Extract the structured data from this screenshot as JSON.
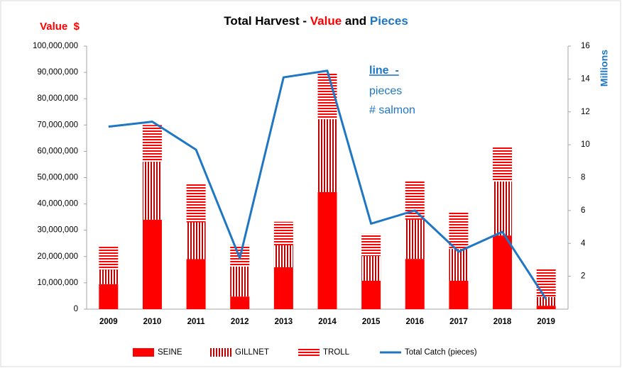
{
  "chart_data": {
    "type": "stacked_bar_line",
    "title_parts": [
      "Total Harvest -",
      "Value",
      "and",
      "Pieces"
    ],
    "y_axis_label": "Value  $",
    "y2_axis_label": "Millions",
    "annotation": [
      "line  -",
      "pieces",
      "# salmon"
    ],
    "categories": [
      "2009",
      "2010",
      "2011",
      "2012",
      "2013",
      "2014",
      "2015",
      "2016",
      "2017",
      "2018",
      "2019"
    ],
    "series": [
      {
        "name": "SEINE",
        "color": "#ff0000",
        "pattern": "solid",
        "values": [
          9.5,
          34,
          19,
          4.8,
          15.9,
          44.5,
          10.8,
          19.1,
          10.8,
          28,
          1.3
        ]
      },
      {
        "name": "GILLNET",
        "color": "#c00000",
        "pattern": "vertical",
        "values": [
          5.5,
          22,
          14,
          11.4,
          8.4,
          27.7,
          9.4,
          14.9,
          12.1,
          20.5,
          3.3
        ]
      },
      {
        "name": "TROLL",
        "color": "#ff0000",
        "pattern": "horizontal",
        "values": [
          8.7,
          14,
          14.7,
          8.1,
          8.9,
          17.6,
          8.4,
          14.8,
          14,
          13.5,
          10.8
        ]
      },
      {
        "name": "Total Catch (pieces)",
        "color": "#1f77c4",
        "type": "line",
        "axis": "y2",
        "values": [
          11.1,
          11.4,
          9.7,
          3.1,
          14.1,
          14.5,
          5.2,
          6.0,
          3.5,
          4.7,
          0.6
        ]
      }
    ],
    "ylim": [
      0,
      100
    ],
    "yticks": [
      0,
      {
        "value": 10,
        "label": "10,000,000"
      },
      {
        "value": 20,
        "label": "20,000,000"
      },
      {
        "value": 30,
        "label": "30,000,000"
      },
      {
        "value": 40,
        "label": "40,000,000"
      },
      {
        "value": 50,
        "label": "50,000,000"
      },
      {
        "value": 60,
        "label": "60,000,000"
      },
      {
        "value": 70,
        "label": "70,000,000"
      },
      {
        "value": 80,
        "label": "80,000,000"
      },
      {
        "value": 90,
        "label": "90,000,000"
      },
      {
        "value": 100,
        "label": "100,000,000"
      }
    ],
    "y2lim": [
      0,
      16
    ],
    "y2ticks": [
      2,
      4,
      6,
      8,
      10,
      12,
      14,
      16
    ],
    "legend": "bottom",
    "grid": false
  }
}
